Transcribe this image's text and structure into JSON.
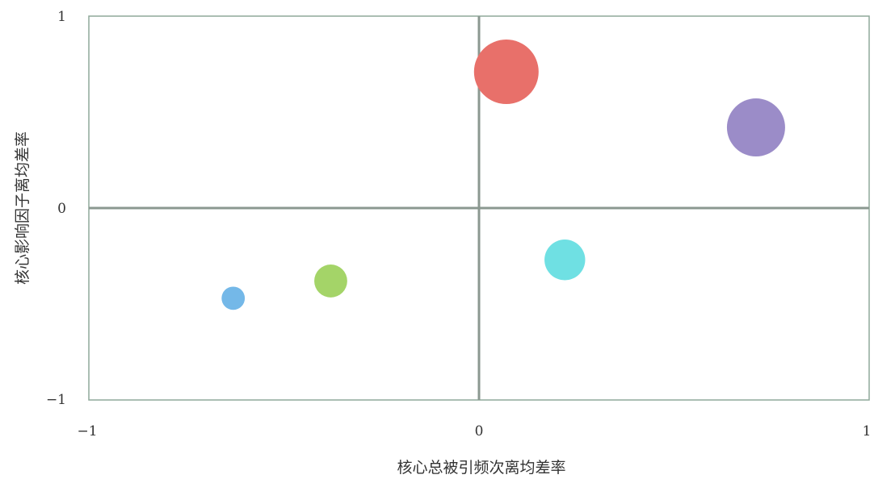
{
  "chart_data": {
    "type": "scatter",
    "subtype": "bubble",
    "title": "",
    "xlabel": "核心总被引频次离均差率",
    "ylabel": "核心影响因子离均差率",
    "xlim": [
      -1,
      1
    ],
    "ylim": [
      -1,
      1
    ],
    "x_ticks": [
      "−1",
      "0",
      "1"
    ],
    "y_ticks": [
      "1",
      "0",
      "−1"
    ],
    "grid": false,
    "quadrant_lines": {
      "x": 0,
      "y": 0
    },
    "points": [
      {
        "x": 0.07,
        "y": 0.71,
        "size": 1.0,
        "color": "#e8706a"
      },
      {
        "x": 0.71,
        "y": 0.42,
        "size": 0.9,
        "color": "#9b8cc8"
      },
      {
        "x": 0.22,
        "y": -0.27,
        "size": 0.63,
        "color": "#6fe0e3"
      },
      {
        "x": -0.38,
        "y": -0.38,
        "size": 0.51,
        "color": "#a4d468"
      },
      {
        "x": -0.63,
        "y": -0.47,
        "size": 0.36,
        "color": "#74b8e8"
      }
    ]
  }
}
